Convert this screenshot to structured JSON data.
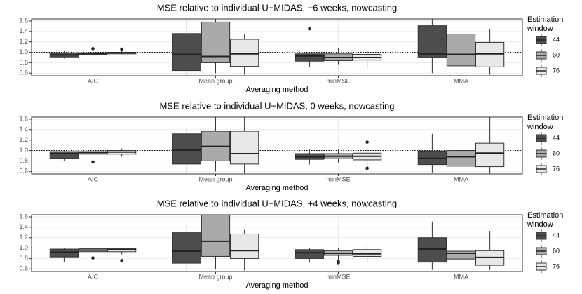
{
  "chart_data": [
    {
      "type": "box",
      "title": "MSE relative to individual U−MIDAS, −6 weeks, nowcasting",
      "x_label": "Averaging method",
      "categories": [
        "AIC",
        "Mean group",
        "minMSE",
        "MMA"
      ],
      "legend_title": "Estimation window",
      "hline": 1,
      "ylim": [
        0.55,
        1.64
      ],
      "yticks": [
        0.6,
        0.8,
        {
          "value": 1,
          "label": "1.0"
        },
        1.2,
        1.4,
        1.6
      ],
      "grid": true,
      "series": [
        {
          "name": "44",
          "color": "#4d4d4d",
          "boxes": [
            {
              "whislo": 0.88,
              "q1": 0.91,
              "med": 0.95,
              "q3": 0.99,
              "whishi": 1.02,
              "fliers": []
            },
            {
              "whislo": 0.55,
              "q1": 0.65,
              "med": 0.96,
              "q3": 1.36,
              "whishi": 1.64,
              "fliers": []
            },
            {
              "whislo": 0.72,
              "q1": 0.83,
              "med": 0.93,
              "q3": 0.97,
              "whishi": 1.0,
              "fliers": [
                1.45
              ]
            },
            {
              "whislo": 0.6,
              "q1": 0.9,
              "med": 0.97,
              "q3": 1.51,
              "whishi": 1.64,
              "fliers": []
            }
          ]
        },
        {
          "name": "60",
          "color": "#aaaaaa",
          "boxes": [
            {
              "whislo": 0.93,
              "q1": 0.95,
              "med": 0.97,
              "q3": 0.99,
              "whishi": 1.02,
              "fliers": [
                1.07
              ]
            },
            {
              "whislo": 0.6,
              "q1": 0.8,
              "med": 0.92,
              "q3": 1.58,
              "whishi": 1.64,
              "fliers": []
            },
            {
              "whislo": 0.77,
              "q1": 0.84,
              "med": 0.9,
              "q3": 0.97,
              "whishi": 1.08,
              "fliers": []
            },
            {
              "whislo": 0.57,
              "q1": 0.74,
              "med": 0.96,
              "q3": 1.35,
              "whishi": 1.64,
              "fliers": []
            }
          ]
        },
        {
          "name": "76",
          "color": "#e8e8e8",
          "boxes": [
            {
              "whislo": 0.96,
              "q1": 0.97,
              "med": 0.99,
              "q3": 1.0,
              "whishi": 1.02,
              "fliers": [
                1.06
              ]
            },
            {
              "whislo": 0.57,
              "q1": 0.73,
              "med": 0.97,
              "q3": 1.25,
              "whishi": 1.34,
              "fliers": []
            },
            {
              "whislo": 0.68,
              "q1": 0.85,
              "med": 0.9,
              "q3": 0.96,
              "whishi": 1.02,
              "fliers": []
            },
            {
              "whislo": 0.57,
              "q1": 0.72,
              "med": 0.97,
              "q3": 1.19,
              "whishi": 1.45,
              "fliers": []
            }
          ]
        }
      ]
    },
    {
      "type": "box",
      "title": "MSE relative to individual U−MIDAS, 0 weeks, nowcasting",
      "x_label": "Averaging method",
      "categories": [
        "AIC",
        "Mean group",
        "minMSE",
        "MMA"
      ],
      "legend_title": "Estimation window",
      "hline": 1,
      "ylim": [
        0.55,
        1.64
      ],
      "yticks": [
        0.6,
        0.8,
        {
          "value": 1,
          "label": "1.0"
        },
        1.2,
        1.4,
        1.6
      ],
      "grid": true,
      "series": [
        {
          "name": "44",
          "color": "#4d4d4d",
          "boxes": [
            {
              "whislo": 0.8,
              "q1": 0.85,
              "med": 0.94,
              "q3": 0.98,
              "whishi": 0.99,
              "fliers": []
            },
            {
              "whislo": 0.57,
              "q1": 0.74,
              "med": 1.01,
              "q3": 1.32,
              "whishi": 1.42,
              "fliers": []
            },
            {
              "whislo": 0.73,
              "q1": 0.83,
              "med": 0.88,
              "q3": 0.94,
              "whishi": 1.02,
              "fliers": []
            },
            {
              "whislo": 0.58,
              "q1": 0.73,
              "med": 0.85,
              "q3": 0.99,
              "whishi": 1.32,
              "fliers": []
            }
          ]
        },
        {
          "name": "60",
          "color": "#aaaaaa",
          "boxes": [
            {
              "whislo": 0.82,
              "q1": 0.93,
              "med": 0.96,
              "q3": 0.98,
              "whishi": 1.0,
              "fliers": [
                0.78
              ]
            },
            {
              "whislo": 0.6,
              "q1": 0.8,
              "med": 1.08,
              "q3": 1.37,
              "whishi": 1.64,
              "fliers": []
            },
            {
              "whislo": 0.77,
              "q1": 0.84,
              "med": 0.89,
              "q3": 0.94,
              "whishi": 1.03,
              "fliers": []
            },
            {
              "whislo": 0.57,
              "q1": 0.7,
              "med": 0.88,
              "q3": 1.0,
              "whishi": 1.38,
              "fliers": []
            }
          ]
        },
        {
          "name": "76",
          "color": "#e8e8e8",
          "boxes": [
            {
              "whislo": 0.88,
              "q1": 0.93,
              "med": 0.97,
              "q3": 1.0,
              "whishi": 1.04,
              "fliers": []
            },
            {
              "whislo": 0.56,
              "q1": 0.74,
              "med": 0.94,
              "q3": 1.37,
              "whishi": 1.64,
              "fliers": []
            },
            {
              "whislo": 0.71,
              "q1": 0.82,
              "med": 0.89,
              "q3": 0.95,
              "whishi": 1.05,
              "fliers": [
                1.16,
                0.66
              ]
            },
            {
              "whislo": 0.56,
              "q1": 0.69,
              "med": 0.95,
              "q3": 1.14,
              "whishi": 1.64,
              "fliers": []
            }
          ]
        }
      ]
    },
    {
      "type": "box",
      "title": "MSE relative to individual U−MIDAS, +4 weeks, nowcasting",
      "x_label": "Averaging method",
      "categories": [
        "AIC",
        "Mean group",
        "minMSE",
        "MMA"
      ],
      "legend_title": "Estimation window",
      "hline": 1,
      "ylim": [
        0.55,
        1.64
      ],
      "yticks": [
        0.6,
        0.8,
        {
          "value": 1,
          "label": "1.0"
        },
        1.2,
        1.4,
        1.6
      ],
      "grid": true,
      "series": [
        {
          "name": "44",
          "color": "#4d4d4d",
          "boxes": [
            {
              "whislo": 0.73,
              "q1": 0.83,
              "med": 0.92,
              "q3": 0.98,
              "whishi": 1.0,
              "fliers": []
            },
            {
              "whislo": 0.57,
              "q1": 0.71,
              "med": 0.94,
              "q3": 1.31,
              "whishi": 1.43,
              "fliers": []
            },
            {
              "whislo": 0.72,
              "q1": 0.8,
              "med": 0.91,
              "q3": 0.97,
              "whishi": 1.0,
              "fliers": []
            },
            {
              "whislo": 0.58,
              "q1": 0.73,
              "med": 0.98,
              "q3": 1.2,
              "whishi": 1.51,
              "fliers": []
            }
          ]
        },
        {
          "name": "60",
          "color": "#aaaaaa",
          "boxes": [
            {
              "whislo": 0.88,
              "q1": 0.93,
              "med": 0.96,
              "q3": 0.99,
              "whishi": 1.0,
              "fliers": [
                0.81
              ]
            },
            {
              "whislo": 0.6,
              "q1": 0.84,
              "med": 1.13,
              "q3": 1.64,
              "whishi": 1.64,
              "fliers": []
            },
            {
              "whislo": 0.78,
              "q1": 0.86,
              "med": 0.9,
              "q3": 0.95,
              "whishi": 1.01,
              "fliers": [
                0.74,
                0.72
              ]
            },
            {
              "whislo": 0.7,
              "q1": 0.79,
              "med": 0.9,
              "q3": 0.94,
              "whishi": 1.04,
              "fliers": []
            }
          ]
        },
        {
          "name": "76",
          "color": "#e8e8e8",
          "boxes": [
            {
              "whislo": 0.88,
              "q1": 0.93,
              "med": 0.97,
              "q3": 0.99,
              "whishi": 1.0,
              "fliers": [
                0.76
              ]
            },
            {
              "whislo": 0.57,
              "q1": 0.8,
              "med": 0.95,
              "q3": 1.27,
              "whishi": 1.35,
              "fliers": []
            },
            {
              "whislo": 0.72,
              "q1": 0.84,
              "med": 0.89,
              "q3": 0.97,
              "whishi": 1.02,
              "fliers": []
            },
            {
              "whislo": 0.58,
              "q1": 0.67,
              "med": 0.82,
              "q3": 0.95,
              "whishi": 1.33,
              "fliers": []
            }
          ]
        }
      ]
    }
  ]
}
